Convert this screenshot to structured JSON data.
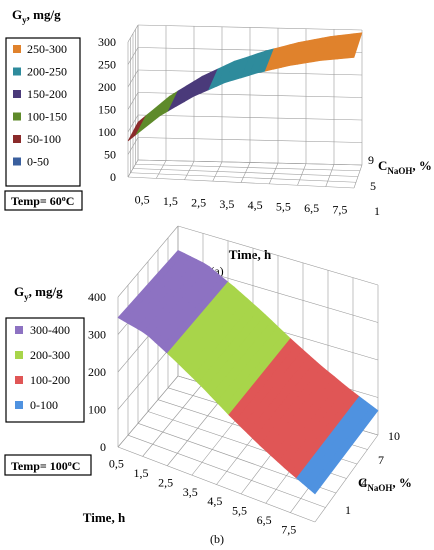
{
  "chart_data": [
    {
      "type": "surface",
      "caption": "(a)",
      "zlabel": "Gy, mg/g",
      "xlabel": "Time, h",
      "ylabel": "CNaOH, %",
      "x_ticks": [
        "0,5",
        "1,5",
        "2,5",
        "3,5",
        "4,5",
        "5,5",
        "6,5",
        "7,5"
      ],
      "y_ticks": [
        "1",
        "5",
        "9"
      ],
      "z_ticks": [
        "0",
        "50",
        "100",
        "150",
        "200",
        "250",
        "300"
      ],
      "zlim": [
        0,
        300
      ],
      "legend": [
        "250-300",
        "200-250",
        "150-200",
        "100-150",
        "50-100",
        "0-50"
      ],
      "legend_colors": [
        "#e0822c",
        "#2e8b9c",
        "#4a3a7a",
        "#5e8a2a",
        "#8a2a2a",
        "#3a5f9e"
      ],
      "annotation": "Temp= 60oC",
      "time": [
        0.5,
        1.5,
        2.5,
        3.5,
        4.5,
        5.5,
        6.5,
        7.5
      ],
      "surface_values": [
        80,
        140,
        185,
        220,
        245,
        265,
        280,
        290
      ]
    },
    {
      "type": "surface",
      "caption": "(b)",
      "zlabel": "Gy, mg/g",
      "xlabel": "Time, h",
      "ylabel": "CNaOH, %",
      "x_ticks": [
        "0,5",
        "1,5",
        "2,5",
        "3,5",
        "4,5",
        "5,5",
        "6,5",
        "7,5"
      ],
      "y_ticks": [
        "1",
        "4",
        "7",
        "10"
      ],
      "z_ticks": [
        "0",
        "100",
        "200",
        "300",
        "400"
      ],
      "zlim": [
        0,
        400
      ],
      "legend": [
        "300-400",
        "200-300",
        "100-200",
        "0-100"
      ],
      "legend_colors": [
        "#8d72c2",
        "#a8d54a",
        "#e05656",
        "#4f92e0"
      ],
      "annotation": "Temp= 100oC",
      "time": [
        0.5,
        1.5,
        2.5,
        3.5,
        4.5,
        5.5,
        6.5,
        7.5
      ],
      "surface_values": [
        345,
        330,
        290,
        245,
        195,
        150,
        110,
        75
      ]
    }
  ]
}
